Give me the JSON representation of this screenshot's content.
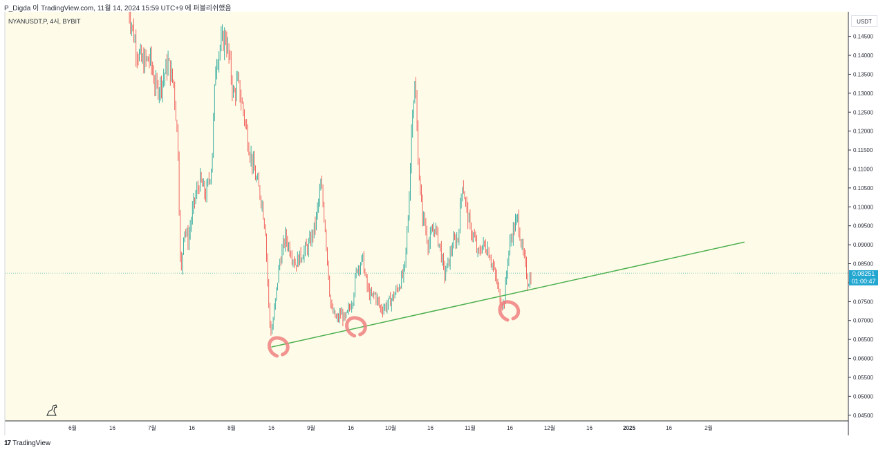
{
  "header": {
    "author_line": "P_Digda 이 TradingView.com, 11월 14, 2024 15:59 UTC+9 에 퍼블리쉬했음"
  },
  "symbol_line": "NYANUSDT.P, 4시, BYBIT",
  "price_unit": "USDT",
  "current_price": {
    "value": "0.08251",
    "countdown": "01:00:47"
  },
  "footer": {
    "brand": "TradingView",
    "logo_glyph": "17"
  },
  "colors": {
    "chart_bg": "#fefce8",
    "up": "#26a69a",
    "down": "#ef5350",
    "trendline": "#4caf50",
    "marker": "#f08080",
    "price_label": "#22a7d1"
  },
  "chart_data": {
    "type": "candlestick",
    "title": "",
    "ylim": [
      0.0435,
      0.1515
    ],
    "y_ticks": [
      "0.14500",
      "0.14000",
      "0.13500",
      "0.13000",
      "0.12500",
      "0.12000",
      "0.11500",
      "0.11000",
      "0.10500",
      "0.10000",
      "0.09500",
      "0.09000",
      "0.08500",
      "0.08000",
      "0.07500",
      "0.07000",
      "0.06500",
      "0.06000",
      "0.05500",
      "0.05000",
      "0.04500"
    ],
    "x_ticks": [
      "6월",
      "16",
      "7월",
      "16",
      "8월",
      "16",
      "9월",
      "16",
      "10월",
      "16",
      "11월",
      "16",
      "12월",
      "16",
      "2025",
      "16",
      "2월"
    ],
    "x_tick_units": [
      0,
      1,
      2,
      3,
      4,
      5,
      6,
      7,
      8,
      9,
      10,
      11,
      12,
      13,
      14,
      15,
      16
    ],
    "price_path": [
      [
        1.4,
        0.153
      ],
      [
        1.6,
        0.142
      ],
      [
        1.75,
        0.138
      ],
      [
        1.95,
        0.139
      ],
      [
        2.1,
        0.131
      ],
      [
        2.25,
        0.133
      ],
      [
        2.4,
        0.138
      ],
      [
        2.55,
        0.132
      ],
      [
        2.65,
        0.116
      ],
      [
        2.72,
        0.08
      ],
      [
        2.8,
        0.095
      ],
      [
        2.9,
        0.091
      ],
      [
        3.05,
        0.101
      ],
      [
        3.2,
        0.107
      ],
      [
        3.35,
        0.103
      ],
      [
        3.5,
        0.111
      ],
      [
        3.6,
        0.138
      ],
      [
        3.7,
        0.142
      ],
      [
        3.85,
        0.145
      ],
      [
        3.95,
        0.138
      ],
      [
        4.05,
        0.129
      ],
      [
        4.15,
        0.133
      ],
      [
        4.3,
        0.125
      ],
      [
        4.45,
        0.115
      ],
      [
        4.6,
        0.108
      ],
      [
        4.75,
        0.102
      ],
      [
        4.85,
        0.094
      ],
      [
        4.95,
        0.07
      ],
      [
        5.0,
        0.0665
      ],
      [
        5.1,
        0.075
      ],
      [
        5.2,
        0.085
      ],
      [
        5.35,
        0.092
      ],
      [
        5.5,
        0.088
      ],
      [
        5.6,
        0.085
      ],
      [
        5.8,
        0.088
      ],
      [
        5.95,
        0.09
      ],
      [
        6.1,
        0.095
      ],
      [
        6.25,
        0.106
      ],
      [
        6.35,
        0.095
      ],
      [
        6.45,
        0.08
      ],
      [
        6.5,
        0.073
      ],
      [
        6.65,
        0.07
      ],
      [
        6.75,
        0.072
      ],
      [
        6.85,
        0.07
      ],
      [
        6.95,
        0.073
      ],
      [
        7.05,
        0.076
      ],
      [
        7.15,
        0.084
      ],
      [
        7.3,
        0.086
      ],
      [
        7.4,
        0.079
      ],
      [
        7.5,
        0.076
      ],
      [
        7.6,
        0.077
      ],
      [
        7.75,
        0.073
      ],
      [
        7.9,
        0.074
      ],
      [
        8.05,
        0.076
      ],
      [
        8.2,
        0.079
      ],
      [
        8.35,
        0.083
      ],
      [
        8.45,
        0.099
      ],
      [
        8.55,
        0.127
      ],
      [
        8.62,
        0.132
      ],
      [
        8.7,
        0.111
      ],
      [
        8.78,
        0.099
      ],
      [
        8.85,
        0.096
      ],
      [
        8.95,
        0.09
      ],
      [
        9.1,
        0.095
      ],
      [
        9.25,
        0.089
      ],
      [
        9.35,
        0.082
      ],
      [
        9.45,
        0.085
      ],
      [
        9.55,
        0.09
      ],
      [
        9.7,
        0.092
      ],
      [
        9.8,
        0.107
      ],
      [
        9.9,
        0.1
      ],
      [
        10.0,
        0.094
      ],
      [
        10.1,
        0.092
      ],
      [
        10.2,
        0.087
      ],
      [
        10.3,
        0.09
      ],
      [
        10.45,
        0.089
      ],
      [
        10.55,
        0.085
      ],
      [
        10.65,
        0.081
      ],
      [
        10.75,
        0.076
      ],
      [
        10.85,
        0.074
      ],
      [
        10.95,
        0.087
      ],
      [
        11.05,
        0.093
      ],
      [
        11.2,
        0.097
      ],
      [
        11.3,
        0.089
      ],
      [
        11.38,
        0.085
      ],
      [
        11.45,
        0.08
      ],
      [
        11.55,
        0.082
      ]
    ],
    "trendline": {
      "x": [
        5.0,
        16.9
      ],
      "y": [
        0.063,
        0.0907
      ]
    },
    "markers": [
      {
        "x": 5.0,
        "y": 0.0632
      },
      {
        "x": 6.95,
        "y": 0.0685
      },
      {
        "x": 10.8,
        "y": 0.0727
      }
    ],
    "current_price_line": 0.08251,
    "grid": false,
    "legend": "none"
  }
}
